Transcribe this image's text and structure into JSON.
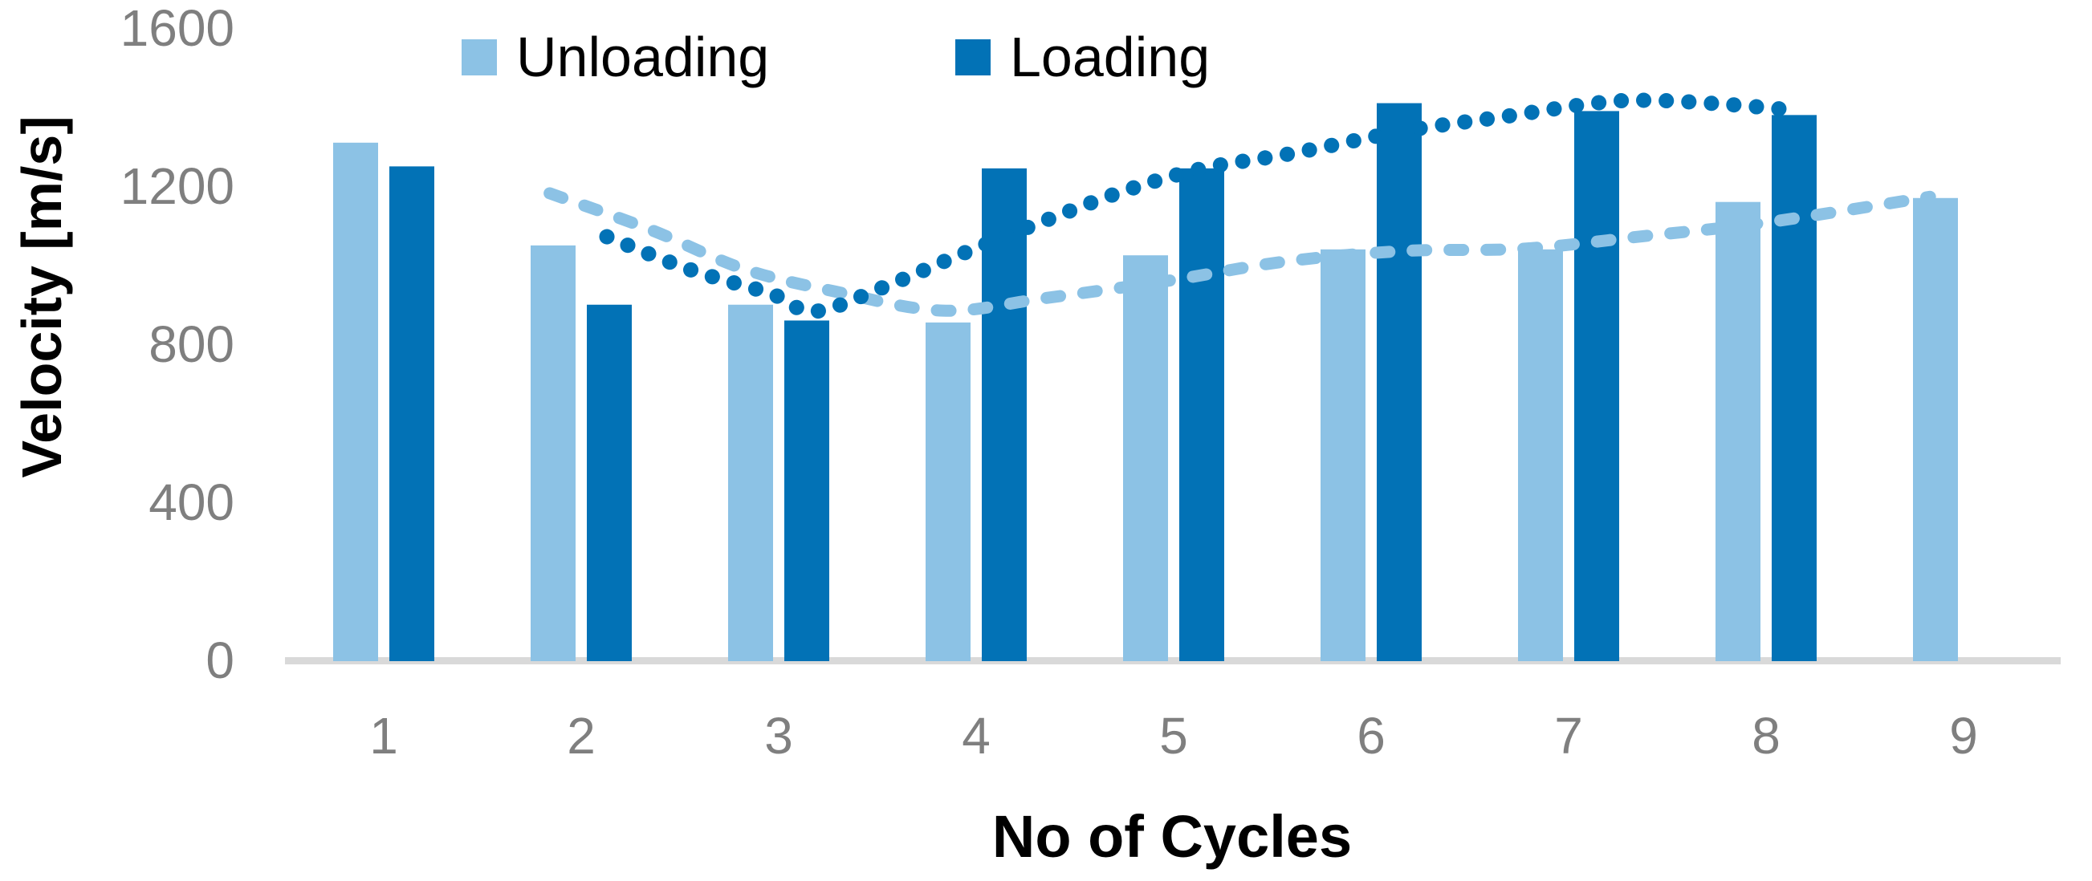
{
  "legend": {
    "items": [
      {
        "label": "Unloading",
        "color": "#8CC2E5"
      },
      {
        "label": "Loading",
        "color": "#0272B6"
      }
    ]
  },
  "y_axis": {
    "title": "Velocity [m/s]",
    "ticks": [
      0,
      400,
      800,
      1200,
      1600
    ]
  },
  "x_axis": {
    "title": "No of Cycles",
    "categories": [
      "1",
      "2",
      "3",
      "4",
      "5",
      "6",
      "7",
      "8",
      "9"
    ]
  },
  "colors": {
    "unloading": "#8CC2E5",
    "loading": "#0272B6",
    "axis_line": "#D9D9D9",
    "tick_text": "#7F7F7F",
    "title_text": "#000000",
    "background": "#FFFFFF"
  },
  "chart_data": {
    "type": "bar",
    "title": "",
    "xlabel": "No of Cycles",
    "ylabel": "Velocity [m/s]",
    "ylim": [
      0,
      1600
    ],
    "grid": false,
    "legend_position": "top",
    "categories": [
      1,
      2,
      3,
      4,
      5,
      6,
      7,
      8,
      9
    ],
    "series": [
      {
        "name": "Unloading",
        "color": "#8CC2E5",
        "values": [
          1310,
          1050,
          900,
          855,
          1025,
          1040,
          1040,
          1160,
          1170
        ]
      },
      {
        "name": "Loading",
        "color": "#0272B6",
        "values": [
          1250,
          900,
          860,
          1245,
          1245,
          1410,
          1390,
          1380,
          null
        ]
      }
    ],
    "trendlines": [
      {
        "series": "Unloading",
        "style": "dashed",
        "color": "#8CC2E5",
        "points": [
          [
            1.84,
            1182
          ],
          [
            2.35,
            1090
          ],
          [
            2.82,
            991
          ],
          [
            3.28,
            934
          ],
          [
            3.83,
            885
          ],
          [
            4.34,
            916
          ],
          [
            4.99,
            962
          ],
          [
            5.56,
            1009
          ],
          [
            6.17,
            1036
          ],
          [
            6.78,
            1042
          ],
          [
            7.39,
            1074
          ],
          [
            8.0,
            1108
          ],
          [
            8.83,
            1173
          ]
        ]
      },
      {
        "series": "Loading",
        "style": "dotted",
        "color": "#0272B6",
        "points": [
          [
            2.13,
            1072
          ],
          [
            2.55,
            989
          ],
          [
            2.96,
            928
          ],
          [
            3.18,
            883
          ],
          [
            3.53,
            944
          ],
          [
            3.93,
            1029
          ],
          [
            4.34,
            1111
          ],
          [
            4.75,
            1188
          ],
          [
            5.15,
            1245
          ],
          [
            5.6,
            1283
          ],
          [
            6.17,
            1340
          ],
          [
            6.66,
            1375
          ],
          [
            7.15,
            1411
          ],
          [
            7.43,
            1417
          ],
          [
            7.8,
            1407
          ],
          [
            8.08,
            1395
          ]
        ]
      }
    ]
  }
}
